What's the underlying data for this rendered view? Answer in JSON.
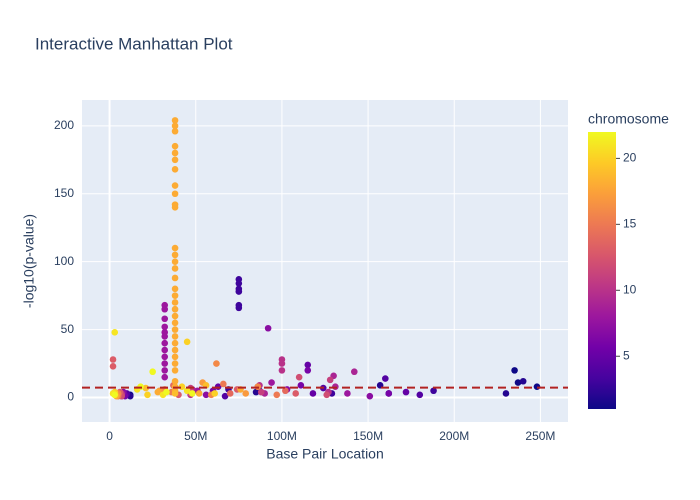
{
  "chart_data": {
    "type": "scatter",
    "title": "Interactive Manhattan Plot",
    "x_label": "Base Pair Location",
    "y_label": "-log10(p-value)",
    "colorbar_title": "chromosome",
    "colorscale": [
      "#0d0887",
      "#46039f",
      "#7201a8",
      "#9c179e",
      "#bd3786",
      "#d8576b",
      "#ed7953",
      "#fb9f3a",
      "#fdca26",
      "#f0f921"
    ],
    "clim": [
      1,
      22
    ],
    "cticks": [
      5,
      10,
      15,
      20
    ],
    "xlim": [
      -16000000,
      266000000
    ],
    "xticks": [
      0,
      {
        "value": 50000000,
        "label": "50M"
      },
      {
        "value": 100000000,
        "label": "100M"
      },
      {
        "value": 150000000,
        "label": "150M"
      },
      {
        "value": 200000000,
        "label": "200M"
      },
      {
        "value": 250000000,
        "label": "250M"
      }
    ],
    "ylim": [
      -18,
      219
    ],
    "yticks": [
      0,
      50,
      100,
      150,
      200
    ],
    "grid": true,
    "hline": {
      "y": 7.3,
      "color": "#b22222"
    },
    "x": [
      12000000,
      87000000,
      162000000,
      237000000,
      235000000,
      248000000,
      12000000,
      85000000,
      157000000,
      230000000,
      240000000,
      10000000,
      69000000,
      129000000,
      188000000,
      75000000,
      75000000,
      75000000,
      75000000,
      75000000,
      75000000,
      10000000,
      67000000,
      124000000,
      180000000,
      160000000,
      9000000,
      63000000,
      118000000,
      172000000,
      115000000,
      9000000,
      60000000,
      111000000,
      162000000,
      115000000,
      8000000,
      56000000,
      103000000,
      151000000,
      92000000,
      7000000,
      51000000,
      94000000,
      138000000,
      32000000,
      32000000,
      32000000,
      32000000,
      32000000,
      32000000,
      32000000,
      32000000,
      32000000,
      32000000,
      32000000,
      32000000,
      7000000,
      48000000,
      90000000,
      131000000,
      130000000,
      142000000,
      7000000,
      47000000,
      87000000,
      127000000,
      100000000,
      100000000,
      100000000,
      7000000,
      47000000,
      88000000,
      128000000,
      7000000,
      47000000,
      86000000,
      126000000,
      110000000,
      6000000,
      40000000,
      74000000,
      108000000,
      2000000,
      2000000,
      5000000,
      37000000,
      70000000,
      102000000,
      5000000,
      36000000,
      66000000,
      97000000,
      5000000,
      32000000,
      59000000,
      86000000,
      62000000,
      4000000,
      29000000,
      54000000,
      79000000,
      4000000,
      28000000,
      52000000,
      76000000,
      38000000,
      38000000,
      38000000,
      38000000,
      38000000,
      38000000,
      38000000,
      38000000,
      38000000,
      38000000,
      38000000,
      38000000,
      38000000,
      38000000,
      38000000,
      38000000,
      38000000,
      38000000,
      38000000,
      38000000,
      38000000,
      38000000,
      38000000,
      38000000,
      38000000,
      38000000,
      38000000,
      38000000,
      38000000,
      38000000,
      38000000,
      38000000,
      3000000,
      21000000,
      38000000,
      56000000,
      3000000,
      22000000,
      42000000,
      61000000,
      45000000,
      2000000,
      16000000,
      31000000,
      45000000,
      3000000,
      3000000,
      18000000,
      33000000,
      48000000,
      25000000
    ],
    "y": [
      2,
      5,
      3,
      11,
      20,
      8,
      1,
      4,
      9,
      3,
      12,
      2,
      6,
      3,
      5,
      87,
      84,
      80,
      78,
      68,
      66,
      3,
      1,
      7,
      2,
      14,
      2,
      8,
      3,
      4,
      24,
      1,
      5,
      9,
      3,
      20,
      4,
      2,
      6,
      1,
      51,
      2,
      5,
      11,
      3,
      68,
      65,
      58,
      52,
      48,
      45,
      40,
      35,
      30,
      25,
      20,
      15,
      1,
      6,
      3,
      8,
      16,
      19,
      3,
      2,
      9,
      4,
      28,
      25,
      20,
      2,
      7,
      4,
      13,
      1,
      3,
      8,
      2,
      15,
      4,
      2,
      6,
      3,
      28,
      23,
      2,
      9,
      3,
      5,
      1,
      4,
      10,
      2,
      3,
      6,
      2,
      8,
      25,
      2,
      5,
      11,
      3,
      1,
      4,
      3,
      6,
      204,
      200,
      196,
      185,
      180,
      175,
      168,
      156,
      150,
      142,
      140,
      110,
      105,
      100,
      95,
      88,
      80,
      75,
      70,
      65,
      60,
      55,
      50,
      45,
      40,
      35,
      30,
      25,
      20,
      12,
      8,
      5,
      2,
      7,
      3,
      9,
      4,
      2,
      8,
      3,
      41,
      3,
      6,
      2,
      5,
      48,
      2,
      8,
      4,
      3,
      19
    ],
    "chromosome": [
      1,
      1,
      1,
      1,
      1,
      1,
      2,
      2,
      2,
      2,
      2,
      3,
      3,
      3,
      3,
      3,
      3,
      3,
      3,
      3,
      3,
      4,
      4,
      4,
      4,
      4,
      5,
      5,
      5,
      5,
      5,
      6,
      6,
      6,
      6,
      6,
      7,
      7,
      7,
      7,
      7,
      8,
      8,
      8,
      8,
      8,
      8,
      8,
      8,
      8,
      8,
      8,
      8,
      8,
      8,
      8,
      8,
      9,
      9,
      9,
      9,
      9,
      9,
      10,
      10,
      10,
      10,
      10,
      10,
      10,
      11,
      11,
      11,
      11,
      12,
      12,
      12,
      12,
      12,
      13,
      13,
      13,
      13,
      13,
      13,
      14,
      14,
      14,
      14,
      15,
      15,
      15,
      15,
      16,
      16,
      16,
      16,
      16,
      17,
      17,
      17,
      17,
      18,
      18,
      18,
      18,
      18,
      18,
      18,
      18,
      18,
      18,
      18,
      18,
      18,
      18,
      18,
      18,
      18,
      18,
      18,
      18,
      18,
      18,
      18,
      18,
      18,
      18,
      18,
      18,
      18,
      18,
      18,
      18,
      18,
      18,
      18,
      18,
      19,
      19,
      19,
      19,
      20,
      20,
      20,
      20,
      20,
      21,
      21,
      21,
      21,
      21,
      22,
      22,
      22,
      22,
      22
    ]
  }
}
